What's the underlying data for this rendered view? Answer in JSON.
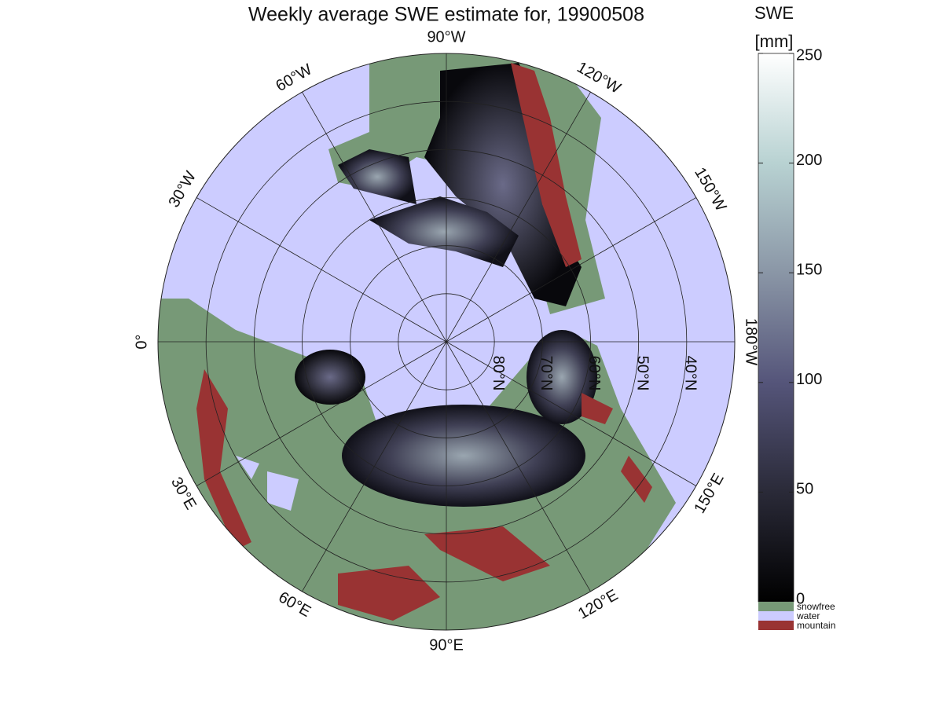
{
  "title": "Weekly average SWE estimate for, 19900508",
  "map": {
    "longitude_labels": [
      {
        "value": 0,
        "label": "0°"
      },
      {
        "value": 30,
        "label": "30°E"
      },
      {
        "value": 60,
        "label": "60°E"
      },
      {
        "value": 90,
        "label": "90°E"
      },
      {
        "value": 120,
        "label": "120°E"
      },
      {
        "value": 150,
        "label": "150°E"
      },
      {
        "value": 180,
        "label": "180°W"
      },
      {
        "value": -150,
        "label": "150°W"
      },
      {
        "value": -120,
        "label": "120°W"
      },
      {
        "value": -90,
        "label": "90°W"
      },
      {
        "value": -60,
        "label": "60°W"
      },
      {
        "value": -30,
        "label": "30°W"
      }
    ],
    "latitude_labels": [
      {
        "value": 80,
        "label": "80°N"
      },
      {
        "value": 70,
        "label": "70°N"
      },
      {
        "value": 60,
        "label": "60°N"
      },
      {
        "value": 50,
        "label": "50°N"
      },
      {
        "value": 40,
        "label": "40°N"
      }
    ]
  },
  "colorbar": {
    "title": "SWE",
    "unit": "[mm]",
    "clim": [
      0,
      250
    ],
    "ticks": [
      0,
      50,
      100,
      150,
      200,
      250
    ],
    "colormap": [
      "#000000",
      "#2a2a38",
      "#55557a",
      "#8a96a6",
      "#b8d2d2",
      "#ffffff"
    ],
    "legend": [
      {
        "name": "snowfree",
        "color": "#779977"
      },
      {
        "name": "water",
        "color": "#ccccff"
      },
      {
        "name": "mountain",
        "color": "#993333"
      }
    ]
  }
}
